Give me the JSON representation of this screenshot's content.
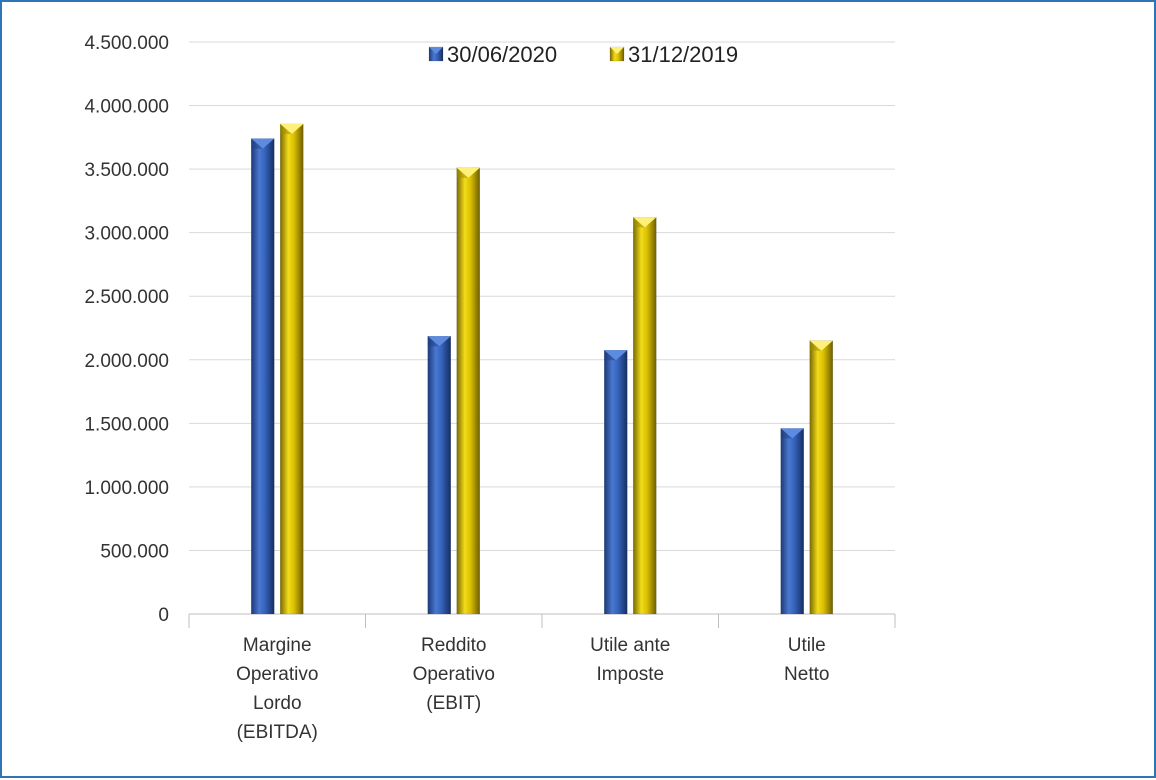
{
  "chart_data": {
    "type": "bar",
    "categories": [
      [
        "Margine",
        "Operativo",
        "Lordo",
        "(EBITDA)"
      ],
      [
        "Reddito",
        "Operativo",
        "(EBIT)"
      ],
      [
        "Utile ante",
        "Imposte"
      ],
      [
        "Utile",
        "Netto"
      ]
    ],
    "series": [
      {
        "name": "30/06/2020",
        "color": "#2F5BAF",
        "values": [
          3740000,
          2185000,
          2075000,
          1460000
        ]
      },
      {
        "name": "31/12/2019",
        "color": "#D4B800",
        "values": [
          3855000,
          3510000,
          3120000,
          2150000
        ]
      }
    ],
    "y_ticks": [
      "0",
      "500.000",
      "1.000.000",
      "1.500.000",
      "2.000.000",
      "2.500.000",
      "3.000.000",
      "3.500.000",
      "4.000.000",
      "4.500.000"
    ],
    "ylim": [
      0,
      4500000
    ],
    "grid": true,
    "legend_position": "top-center",
    "title": "",
    "xlabel": "",
    "ylabel": ""
  }
}
